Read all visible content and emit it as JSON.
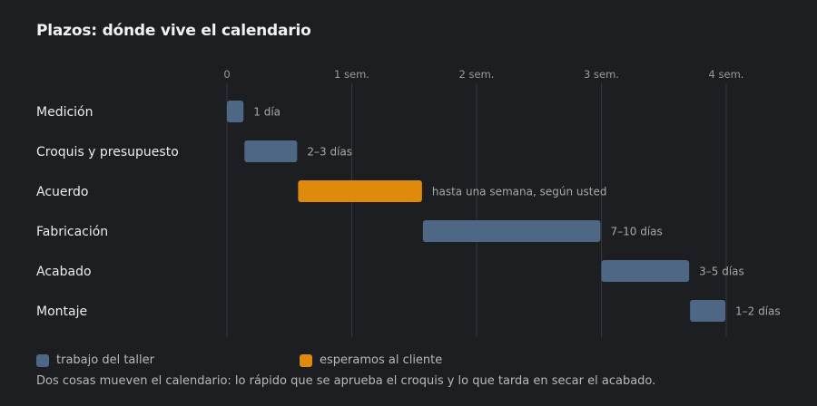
{
  "title": "Plazos: dónde vive el calendario",
  "note": "Dos cosas mueven el calendario: lo rápido que se aprueba el croquis y lo que tarda en secar el acabado.",
  "legend": {
    "shop": "trabajo del taller",
    "client": "esperamos al cliente"
  },
  "colors": {
    "background": "#1c1e22",
    "shop": "#4e6785",
    "client": "#e08a0b",
    "grid": "#34373d",
    "tick_text": "#9a9a9a",
    "label_text": "#ececec",
    "duration_text": "#a8a8a8"
  },
  "chart_data": {
    "type": "bar",
    "orientation": "horizontal-gantt",
    "x_unit": "weeks",
    "xlim": [
      0,
      4
    ],
    "ticks": [
      {
        "value": 0,
        "label": "0"
      },
      {
        "value": 1,
        "label": "1 sem."
      },
      {
        "value": 2,
        "label": "2 sem."
      },
      {
        "value": 3,
        "label": "3 sem."
      },
      {
        "value": 4,
        "label": "4 sem."
      }
    ],
    "grid": true,
    "legend_position": "bottom-left",
    "tasks": [
      {
        "name": "Medición",
        "start": 0.0,
        "end": 0.14,
        "label": "1 día",
        "kind": "shop"
      },
      {
        "name": "Croquis y presupuesto",
        "start": 0.14,
        "end": 0.57,
        "label": "2–3 días",
        "kind": "shop"
      },
      {
        "name": "Acuerdo",
        "start": 0.57,
        "end": 1.57,
        "label": "hasta una semana, según usted",
        "kind": "client"
      },
      {
        "name": "Fabricación",
        "start": 1.57,
        "end": 3.0,
        "label": "7–10 días",
        "kind": "shop"
      },
      {
        "name": "Acabado",
        "start": 3.0,
        "end": 3.71,
        "label": "3–5 días",
        "kind": "shop"
      },
      {
        "name": "Montaje",
        "start": 3.71,
        "end": 4.0,
        "label": "1–2 días",
        "kind": "shop"
      }
    ]
  }
}
